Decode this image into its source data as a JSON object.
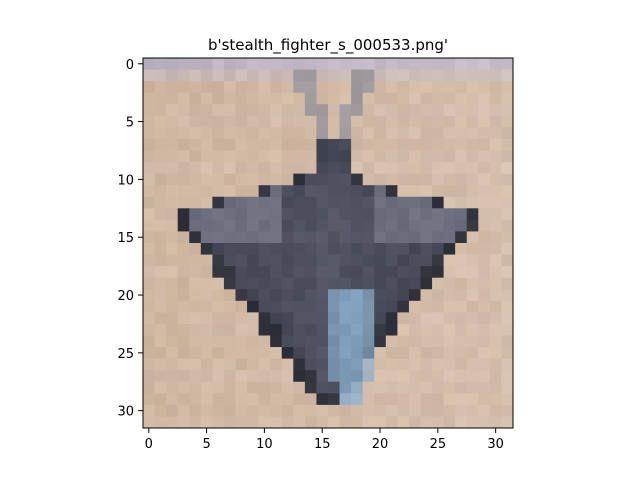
{
  "figure": {
    "title": "b'stealth_fighter_s_000533.png'",
    "image_size": [
      32,
      32
    ]
  },
  "axes": {
    "x_ticks": [
      0,
      5,
      10,
      15,
      20,
      25,
      30
    ],
    "y_ticks": [
      0,
      5,
      10,
      15,
      20,
      25,
      30
    ],
    "x_range": [
      -0.5,
      31.5
    ],
    "y_range": [
      -0.5,
      31.5
    ],
    "y_inverted": true
  },
  "image": {
    "subject": "stealth fighter jet seen from above, nose pointing down",
    "background_color": "#d2bcaa",
    "sky_band_color": "#b8b2c6",
    "aircraft_dark": "#3a3e4a",
    "aircraft_mid": "#5c6070",
    "aircraft_light": "#8a8c96",
    "canopy_color": "#8aaecc",
    "outline_color": "#2a2c34"
  }
}
